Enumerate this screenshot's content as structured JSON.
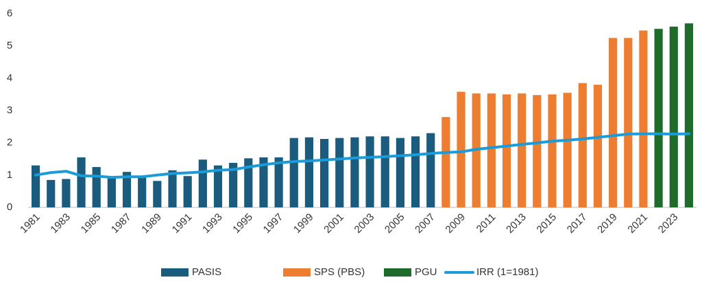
{
  "chart_data": {
    "type": "bar",
    "categories": [
      "1981",
      null,
      "1983",
      null,
      "1985",
      null,
      "1987",
      null,
      "1989",
      null,
      "1991",
      null,
      "1993",
      null,
      "1995",
      null,
      "1997",
      null,
      "1999",
      null,
      "2001",
      null,
      "2003",
      null,
      "2005",
      null,
      "2007",
      null,
      "2009",
      null,
      "2011",
      null,
      "2013",
      null,
      "2015",
      null,
      "2017",
      null,
      "2019",
      null,
      "2021",
      null,
      "2023",
      null
    ],
    "series": [
      {
        "name": "PASIS",
        "type": "bar",
        "color": "#1b5c7e",
        "values": [
          1.3,
          0.85,
          0.88,
          1.55,
          1.25,
          0.9,
          1.1,
          0.95,
          0.82,
          1.15,
          0.97,
          1.48,
          1.3,
          1.38,
          1.52,
          1.55,
          1.55,
          2.15,
          2.17,
          2.12,
          2.15,
          2.17,
          2.2,
          2.2,
          2.15,
          2.2,
          2.3,
          null,
          null,
          null,
          null,
          null,
          null,
          null,
          null,
          null,
          null,
          null,
          null,
          null,
          null,
          null,
          null,
          null
        ]
      },
      {
        "name": "SPS (PBS)",
        "type": "bar",
        "color": "#ed7d31",
        "values": [
          null,
          null,
          null,
          null,
          null,
          null,
          null,
          null,
          null,
          null,
          null,
          null,
          null,
          null,
          null,
          null,
          null,
          null,
          null,
          null,
          null,
          null,
          null,
          null,
          null,
          null,
          null,
          2.8,
          3.58,
          3.53,
          3.53,
          3.5,
          3.53,
          3.48,
          3.5,
          3.55,
          3.85,
          3.8,
          5.25,
          5.25,
          5.48,
          null,
          null,
          null
        ]
      },
      {
        "name": "PGU",
        "type": "bar",
        "color": "#1e6b2c",
        "values": [
          null,
          null,
          null,
          null,
          null,
          null,
          null,
          null,
          null,
          null,
          null,
          null,
          null,
          null,
          null,
          null,
          null,
          null,
          null,
          null,
          null,
          null,
          null,
          null,
          null,
          null,
          null,
          null,
          null,
          null,
          null,
          null,
          null,
          null,
          null,
          null,
          null,
          null,
          null,
          null,
          null,
          5.53,
          5.6,
          5.7
        ]
      },
      {
        "name": "IRR (1=1981)",
        "type": "line",
        "color": "#1b9cd8",
        "values": [
          1.0,
          1.08,
          1.12,
          0.98,
          0.97,
          0.93,
          0.95,
          0.95,
          1.0,
          1.05,
          1.07,
          1.1,
          1.15,
          1.17,
          1.25,
          1.32,
          1.38,
          1.42,
          1.44,
          1.47,
          1.5,
          1.53,
          1.55,
          1.57,
          1.6,
          1.63,
          1.67,
          1.7,
          1.72,
          1.8,
          1.85,
          1.9,
          1.95,
          2.0,
          2.05,
          2.08,
          2.12,
          2.17,
          2.22,
          2.27,
          2.28,
          2.28,
          2.27,
          2.28
        ]
      }
    ],
    "ylim": [
      0,
      6
    ],
    "yticks": [
      0,
      1,
      2,
      3,
      4,
      5,
      6
    ],
    "grid": false,
    "legend": "bottom"
  }
}
